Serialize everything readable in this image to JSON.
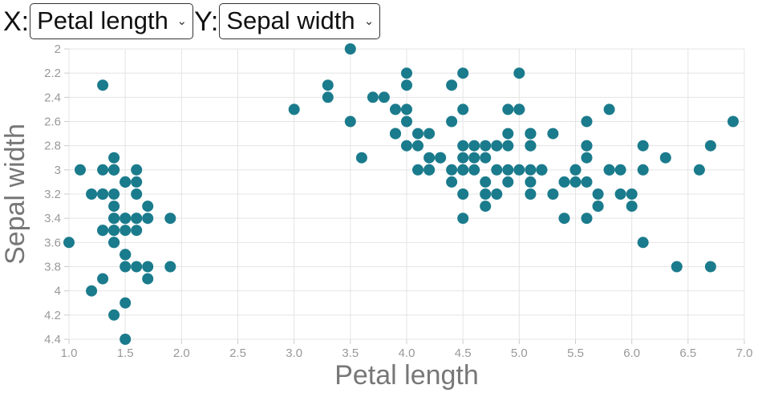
{
  "controls": {
    "x_label": "X:",
    "x_selected": "Petal length",
    "y_label": "Y:",
    "y_selected": "Sepal width"
  },
  "chart_data": {
    "type": "scatter",
    "title": "",
    "xlabel": "Petal length",
    "ylabel": "Sepal width",
    "xlim": [
      1.0,
      7.0
    ],
    "ylim": [
      2.0,
      4.4
    ],
    "y_inverted": true,
    "grid": true,
    "x_ticks": [
      "1.0",
      "1.5",
      "2.0",
      "2.5",
      "3.0",
      "3.5",
      "4.0",
      "4.5",
      "5.0",
      "5.5",
      "6.0",
      "6.5",
      "7.0"
    ],
    "y_ticks": [
      "2",
      "2.2",
      "2.4",
      "2.6",
      "2.8",
      "3",
      "3.2",
      "3.4",
      "3.6",
      "3.8",
      "4",
      "4.2",
      "4.4"
    ],
    "point_color": "#1a7b8c",
    "point_radius": 7,
    "points": [
      [
        1.4,
        3.5
      ],
      [
        1.4,
        3.0
      ],
      [
        1.3,
        3.2
      ],
      [
        1.5,
        3.1
      ],
      [
        1.4,
        3.6
      ],
      [
        1.7,
        3.9
      ],
      [
        1.4,
        3.4
      ],
      [
        1.5,
        3.4
      ],
      [
        1.4,
        2.9
      ],
      [
        1.5,
        3.1
      ],
      [
        1.5,
        3.7
      ],
      [
        1.6,
        3.4
      ],
      [
        1.4,
        3.0
      ],
      [
        1.1,
        3.0
      ],
      [
        1.2,
        4.0
      ],
      [
        1.5,
        4.4
      ],
      [
        1.3,
        3.9
      ],
      [
        1.4,
        3.5
      ],
      [
        1.7,
        3.8
      ],
      [
        1.5,
        3.8
      ],
      [
        1.7,
        3.4
      ],
      [
        1.5,
        3.7
      ],
      [
        1.0,
        3.6
      ],
      [
        1.7,
        3.3
      ],
      [
        1.9,
        3.4
      ],
      [
        1.6,
        3.0
      ],
      [
        1.6,
        3.4
      ],
      [
        1.5,
        3.5
      ],
      [
        1.4,
        3.4
      ],
      [
        1.6,
        3.2
      ],
      [
        1.6,
        3.1
      ],
      [
        1.5,
        3.4
      ],
      [
        1.5,
        4.1
      ],
      [
        1.4,
        4.2
      ],
      [
        1.5,
        3.1
      ],
      [
        1.2,
        3.2
      ],
      [
        1.3,
        3.5
      ],
      [
        1.4,
        3.6
      ],
      [
        1.3,
        3.0
      ],
      [
        1.5,
        3.4
      ],
      [
        1.3,
        3.5
      ],
      [
        1.3,
        2.3
      ],
      [
        1.3,
        3.2
      ],
      [
        1.6,
        3.5
      ],
      [
        1.9,
        3.8
      ],
      [
        1.4,
        3.0
      ],
      [
        1.6,
        3.8
      ],
      [
        1.4,
        3.2
      ],
      [
        1.5,
        3.7
      ],
      [
        1.4,
        3.3
      ],
      [
        4.7,
        3.2
      ],
      [
        4.5,
        3.2
      ],
      [
        4.9,
        3.1
      ],
      [
        4.0,
        2.3
      ],
      [
        4.6,
        2.8
      ],
      [
        4.5,
        2.8
      ],
      [
        4.7,
        3.3
      ],
      [
        3.3,
        2.4
      ],
      [
        4.6,
        2.9
      ],
      [
        3.9,
        2.7
      ],
      [
        3.5,
        2.0
      ],
      [
        4.2,
        3.0
      ],
      [
        4.0,
        2.2
      ],
      [
        4.7,
        2.9
      ],
      [
        3.6,
        2.9
      ],
      [
        4.4,
        3.1
      ],
      [
        4.5,
        3.0
      ],
      [
        4.1,
        2.7
      ],
      [
        4.5,
        2.2
      ],
      [
        3.9,
        2.5
      ],
      [
        4.8,
        3.2
      ],
      [
        4.0,
        2.8
      ],
      [
        4.9,
        2.5
      ],
      [
        4.7,
        2.8
      ],
      [
        4.3,
        2.9
      ],
      [
        4.4,
        3.0
      ],
      [
        4.8,
        2.8
      ],
      [
        5.0,
        3.0
      ],
      [
        4.5,
        2.9
      ],
      [
        3.5,
        2.6
      ],
      [
        3.8,
        2.4
      ],
      [
        3.7,
        2.4
      ],
      [
        3.9,
        2.7
      ],
      [
        5.1,
        2.7
      ],
      [
        4.5,
        3.0
      ],
      [
        4.5,
        3.4
      ],
      [
        4.7,
        3.1
      ],
      [
        4.4,
        2.3
      ],
      [
        4.1,
        3.0
      ],
      [
        4.0,
        2.5
      ],
      [
        4.4,
        2.6
      ],
      [
        4.6,
        3.0
      ],
      [
        4.0,
        2.6
      ],
      [
        3.3,
        2.3
      ],
      [
        4.2,
        2.7
      ],
      [
        4.2,
        3.0
      ],
      [
        4.2,
        2.9
      ],
      [
        4.3,
        2.9
      ],
      [
        3.0,
        2.5
      ],
      [
        4.1,
        2.8
      ],
      [
        6.0,
        3.3
      ],
      [
        5.1,
        2.7
      ],
      [
        5.9,
        3.0
      ],
      [
        5.6,
        2.9
      ],
      [
        5.8,
        3.0
      ],
      [
        6.6,
        3.0
      ],
      [
        4.5,
        2.5
      ],
      [
        6.3,
        2.9
      ],
      [
        5.8,
        2.5
      ],
      [
        6.1,
        3.6
      ],
      [
        5.1,
        3.2
      ],
      [
        5.3,
        2.7
      ],
      [
        5.5,
        3.0
      ],
      [
        5.0,
        2.5
      ],
      [
        5.1,
        2.8
      ],
      [
        5.3,
        3.2
      ],
      [
        5.5,
        3.0
      ],
      [
        6.7,
        3.8
      ],
      [
        6.9,
        2.6
      ],
      [
        5.0,
        2.2
      ],
      [
        5.7,
        3.2
      ],
      [
        4.9,
        2.8
      ],
      [
        6.7,
        2.8
      ],
      [
        4.9,
        2.7
      ],
      [
        5.7,
        3.3
      ],
      [
        6.0,
        3.2
      ],
      [
        4.8,
        2.8
      ],
      [
        4.9,
        3.0
      ],
      [
        5.6,
        2.8
      ],
      [
        5.8,
        3.0
      ],
      [
        6.1,
        2.8
      ],
      [
        6.4,
        3.8
      ],
      [
        5.6,
        2.8
      ],
      [
        5.1,
        2.8
      ],
      [
        5.6,
        2.6
      ],
      [
        6.1,
        3.0
      ],
      [
        5.6,
        3.4
      ],
      [
        5.5,
        3.1
      ],
      [
        4.8,
        3.0
      ],
      [
        5.4,
        3.1
      ],
      [
        5.6,
        3.1
      ],
      [
        5.1,
        3.1
      ],
      [
        5.1,
        2.7
      ],
      [
        5.9,
        3.2
      ],
      [
        5.7,
        3.3
      ],
      [
        5.2,
        3.0
      ],
      [
        5.0,
        2.5
      ],
      [
        5.2,
        3.0
      ],
      [
        5.4,
        3.4
      ],
      [
        5.1,
        3.0
      ]
    ]
  }
}
